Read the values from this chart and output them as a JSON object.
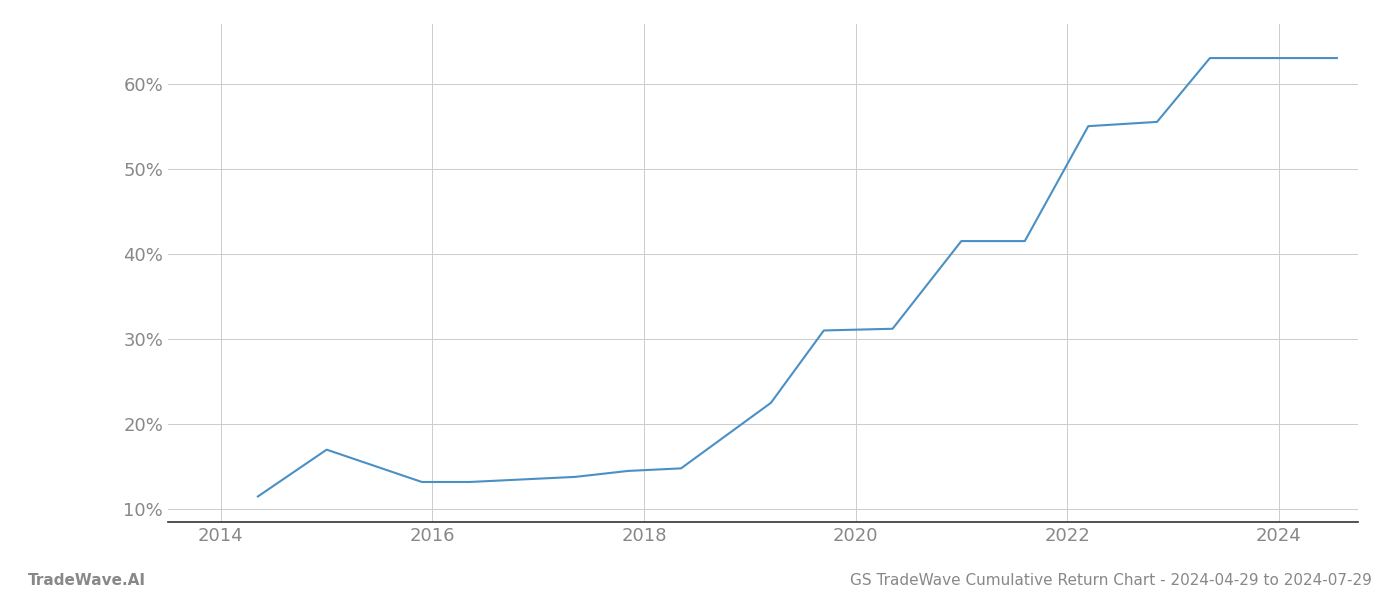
{
  "title": "",
  "footer_left": "TradeWave.AI",
  "footer_right": "GS TradeWave Cumulative Return Chart - 2024-04-29 to 2024-07-29",
  "line_color": "#4a90c4",
  "background_color": "#ffffff",
  "grid_color": "#cccccc",
  "x_values": [
    2014.35,
    2015.0,
    2015.9,
    2016.35,
    2017.35,
    2017.85,
    2018.35,
    2019.2,
    2019.7,
    2020.35,
    2021.0,
    2021.6,
    2022.2,
    2022.85,
    2023.35,
    2024.0,
    2024.55
  ],
  "y_values": [
    11.5,
    17.0,
    13.2,
    13.2,
    13.8,
    14.5,
    14.8,
    22.5,
    31.0,
    31.2,
    41.5,
    41.5,
    55.0,
    55.5,
    63.0,
    63.0,
    63.0
  ],
  "x_ticks": [
    2014,
    2016,
    2018,
    2020,
    2022,
    2024
  ],
  "y_ticks": [
    10,
    20,
    30,
    40,
    50,
    60
  ],
  "xlim": [
    2013.5,
    2024.75
  ],
  "ylim": [
    8.5,
    67
  ],
  "line_width": 1.5,
  "footer_fontsize": 11,
  "tick_fontsize": 13,
  "tick_color": "#888888",
  "axis_color": "#333333"
}
